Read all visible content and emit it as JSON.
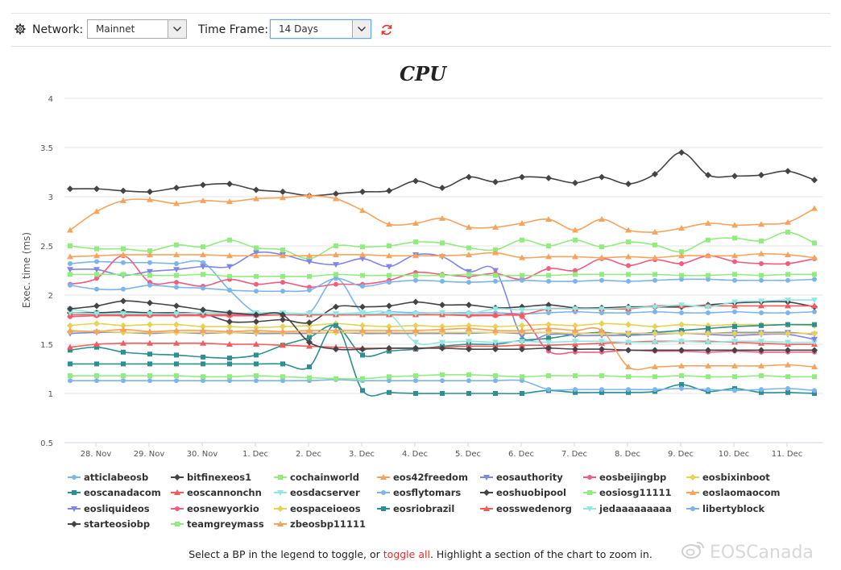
{
  "toolbar": {
    "network_label": "Network:",
    "network_value": "Mainnet",
    "timeframe_label": "Time Frame:",
    "timeframe_value": "14 Days"
  },
  "footer": {
    "text_before": "Select a BP in the legend to toggle, or",
    "toggle_all": "toggle all",
    "text_after": ".  Highlight a section of the chart to zoom in."
  },
  "watermark": "EOSCanada",
  "chart_data": {
    "type": "line",
    "title": "CPU",
    "ylabel": "Exec. time (ms)",
    "xlabel": "",
    "ylim": [
      0.5,
      4
    ],
    "yticks": [
      "0.5",
      "1",
      "1.5",
      "2",
      "2.5",
      "3",
      "3.5",
      "4"
    ],
    "xticks": [
      "28. Nov",
      "29. Nov",
      "30. Nov",
      "1. Dec",
      "2. Dec",
      "3. Dec",
      "4. Dec",
      "5. Dec",
      "6. Dec",
      "7. Dec",
      "8. Dec",
      "9. Dec",
      "10. Dec",
      "11. Dec"
    ],
    "x": [
      "27. Nov 12:00",
      "28. Nov 00:00",
      "28. Nov 12:00",
      "29. Nov 00:00",
      "29. Nov 12:00",
      "30. Nov 00:00",
      "30. Nov 12:00",
      "1. Dec 00:00",
      "1. Dec 12:00",
      "2. Dec 00:00",
      "2. Dec 12:00",
      "3. Dec 00:00",
      "3. Dec 12:00",
      "4. Dec 00:00",
      "4. Dec 12:00",
      "5. Dec 00:00",
      "5. Dec 12:00",
      "6. Dec 00:00",
      "6. Dec 12:00",
      "7. Dec 00:00",
      "7. Dec 12:00",
      "8. Dec 00:00",
      "8. Dec 12:00",
      "9. Dec 00:00",
      "9. Dec 12:00",
      "10. Dec 00:00",
      "10. Dec 12:00",
      "11. Dec 00:00",
      "11. Dec 12:00"
    ],
    "grid": true,
    "legend_position": "bottom",
    "series": [
      {
        "name": "atticlabeosb",
        "color": "#7cb5ec",
        "marker": "circle",
        "values": [
          2.32,
          2.34,
          2.33,
          2.33,
          2.32,
          2.33,
          2.05,
          1.82,
          1.82,
          1.82,
          2.17,
          1.82,
          1.83,
          1.82,
          1.82,
          1.82,
          1.82,
          1.81,
          1.82,
          1.83,
          1.82,
          1.82,
          1.83,
          1.82,
          1.82,
          1.83,
          1.82,
          1.82,
          1.83
        ]
      },
      {
        "name": "bitfinexeos1",
        "color": "#434348",
        "marker": "diamond",
        "values": [
          3.08,
          3.08,
          3.06,
          3.05,
          3.09,
          3.12,
          3.13,
          3.07,
          3.05,
          3.01,
          3.03,
          3.05,
          3.06,
          3.16,
          3.09,
          3.2,
          3.15,
          3.2,
          3.19,
          3.14,
          3.2,
          3.13,
          3.23,
          3.45,
          3.22,
          3.21,
          3.22,
          3.26,
          3.17
        ]
      },
      {
        "name": "cochainworld",
        "color": "#90ed7d",
        "marker": "square",
        "values": [
          2.5,
          2.47,
          2.47,
          2.45,
          2.51,
          2.49,
          2.56,
          2.48,
          2.46,
          2.37,
          2.5,
          2.49,
          2.5,
          2.54,
          2.53,
          2.48,
          2.46,
          2.56,
          2.5,
          2.56,
          2.49,
          2.54,
          2.51,
          2.44,
          2.56,
          2.58,
          2.55,
          2.64,
          2.53
        ]
      },
      {
        "name": "eos42freedom",
        "color": "#f7a35c",
        "marker": "triangle",
        "values": [
          2.66,
          2.85,
          2.96,
          2.97,
          2.93,
          2.96,
          2.95,
          2.98,
          2.99,
          3.01,
          2.98,
          2.86,
          2.72,
          2.73,
          2.78,
          2.69,
          2.69,
          2.73,
          2.77,
          2.66,
          2.77,
          2.66,
          2.64,
          2.68,
          2.73,
          2.71,
          2.72,
          2.74,
          2.88
        ]
      },
      {
        "name": "eosauthority",
        "color": "#8085e9",
        "marker": "triangle-down",
        "values": [
          2.26,
          2.26,
          2.2,
          2.24,
          2.26,
          2.29,
          2.29,
          2.43,
          2.41,
          2.34,
          2.31,
          2.37,
          2.29,
          2.41,
          2.39,
          2.24,
          2.25,
          1.58,
          1.6,
          1.61,
          1.61,
          1.61,
          1.61,
          1.61,
          1.61,
          1.62,
          1.62,
          1.62,
          1.6
        ]
      },
      {
        "name": "eosbeijingbp",
        "color": "#f15c80",
        "marker": "circle",
        "values": [
          2.11,
          2.17,
          2.4,
          2.13,
          2.13,
          2.09,
          2.16,
          2.11,
          2.13,
          2.08,
          2.11,
          2.11,
          2.15,
          2.23,
          2.21,
          2.19,
          2.22,
          2.16,
          2.27,
          2.25,
          2.37,
          2.3,
          2.36,
          2.32,
          2.4,
          2.34,
          2.32,
          2.32,
          2.37
        ]
      },
      {
        "name": "eosbixinboot",
        "color": "#e4d354",
        "marker": "diamond",
        "values": [
          1.69,
          1.71,
          1.69,
          1.7,
          1.7,
          1.68,
          1.68,
          1.67,
          1.68,
          1.69,
          1.71,
          1.69,
          1.68,
          1.69,
          1.68,
          1.69,
          1.68,
          1.69,
          1.7,
          1.69,
          1.71,
          1.7,
          1.68,
          1.7,
          1.69,
          1.7,
          1.7,
          1.7,
          1.69
        ]
      },
      {
        "name": "eoscanadacom",
        "color": "#2b908f",
        "marker": "square",
        "values": [
          1.44,
          1.47,
          1.42,
          1.4,
          1.39,
          1.37,
          1.36,
          1.39,
          1.49,
          1.57,
          1.69,
          1.39,
          1.43,
          1.45,
          1.48,
          1.5,
          1.5,
          1.54,
          1.56,
          1.6,
          1.62,
          1.6,
          1.62,
          1.64,
          1.66,
          1.68,
          1.69,
          1.7,
          1.7
        ]
      },
      {
        "name": "eoscannonchn",
        "color": "#f45b5b",
        "marker": "triangle",
        "values": [
          1.47,
          1.5,
          1.51,
          1.51,
          1.51,
          1.51,
          1.5,
          1.5,
          1.49,
          1.48,
          1.47,
          1.46,
          1.46,
          1.46,
          1.47,
          1.48,
          1.48,
          1.49,
          1.49,
          1.5,
          1.51,
          1.52,
          1.53,
          1.53,
          1.53,
          1.52,
          1.51,
          1.5,
          1.5
        ]
      },
      {
        "name": "eosdacserver",
        "color": "#91e8e1",
        "marker": "triangle-down",
        "values": [
          1.86,
          1.82,
          1.82,
          1.81,
          1.81,
          1.82,
          1.81,
          1.82,
          1.82,
          1.81,
          1.81,
          1.82,
          1.81,
          1.52,
          1.52,
          1.53,
          1.52,
          1.53,
          1.52,
          1.53,
          1.53,
          1.52,
          1.52,
          1.53,
          1.52,
          1.53,
          1.53,
          1.52,
          1.52
        ]
      },
      {
        "name": "eosflytomars",
        "color": "#7cb5ec",
        "marker": "circle",
        "values": [
          2.1,
          2.06,
          2.06,
          2.1,
          2.08,
          2.07,
          2.05,
          2.04,
          2.04,
          2.05,
          2.17,
          2.09,
          2.13,
          2.15,
          2.14,
          2.13,
          2.14,
          2.15,
          2.14,
          2.14,
          2.15,
          2.14,
          2.15,
          2.16,
          2.16,
          2.15,
          2.15,
          2.15,
          2.16
        ]
      },
      {
        "name": "eoshuobipool",
        "color": "#434348",
        "marker": "diamond",
        "values": [
          1.82,
          1.82,
          1.83,
          1.82,
          1.82,
          1.81,
          1.73,
          1.73,
          1.75,
          1.72,
          1.88,
          1.88,
          1.89,
          1.93,
          1.9,
          1.9,
          1.87,
          1.88,
          1.9,
          1.87,
          1.87,
          1.88,
          1.88,
          1.88,
          1.9,
          1.92,
          1.93,
          1.93,
          1.88
        ]
      },
      {
        "name": "eosiosg11111",
        "color": "#90ed7d",
        "marker": "square",
        "values": [
          2.21,
          2.21,
          2.21,
          2.2,
          2.2,
          2.21,
          2.19,
          2.19,
          2.19,
          2.19,
          2.21,
          2.2,
          2.2,
          2.2,
          2.2,
          2.21,
          2.2,
          2.2,
          2.2,
          2.21,
          2.21,
          2.21,
          2.21,
          2.2,
          2.2,
          2.21,
          2.2,
          2.21,
          2.21
        ]
      },
      {
        "name": "eoslaomaocom",
        "color": "#f7a35c",
        "marker": "triangle",
        "values": [
          2.39,
          2.4,
          2.41,
          2.41,
          2.41,
          2.41,
          2.4,
          2.4,
          2.4,
          2.4,
          2.41,
          2.41,
          2.4,
          2.4,
          2.4,
          2.41,
          2.43,
          2.38,
          2.39,
          2.39,
          2.38,
          2.39,
          2.38,
          2.4,
          2.4,
          2.4,
          2.42,
          2.41,
          2.38
        ]
      },
      {
        "name": "eosliquideos",
        "color": "#8085e9",
        "marker": "triangle-down",
        "values": [
          1.61,
          1.62,
          1.62,
          1.61,
          1.62,
          1.61,
          1.62,
          1.61,
          1.61,
          1.61,
          1.62,
          1.61,
          1.61,
          1.61,
          1.61,
          1.61,
          1.62,
          1.61,
          1.62,
          1.59,
          1.59,
          1.59,
          1.6,
          1.61,
          1.6,
          1.59,
          1.6,
          1.6,
          1.55
        ]
      },
      {
        "name": "eosnewyorkio",
        "color": "#f15c80",
        "marker": "circle",
        "values": [
          1.78,
          1.79,
          1.79,
          1.79,
          1.79,
          1.79,
          1.79,
          1.79,
          1.8,
          1.8,
          1.8,
          1.8,
          1.8,
          1.8,
          1.8,
          1.79,
          1.79,
          1.78,
          1.43,
          1.42,
          1.42,
          1.44,
          1.43,
          1.43,
          1.42,
          1.43,
          1.42,
          1.42,
          1.42
        ]
      },
      {
        "name": "eospaceioeos",
        "color": "#e4d354",
        "marker": "diamond",
        "values": [
          1.63,
          1.63,
          1.62,
          1.62,
          1.62,
          1.62,
          1.62,
          1.62,
          1.62,
          1.62,
          1.62,
          1.62,
          1.62,
          1.62,
          1.62,
          1.62,
          1.62,
          1.62,
          1.62,
          1.61,
          1.61,
          1.61,
          1.61,
          1.61,
          1.61,
          1.61,
          1.61,
          1.61,
          1.61
        ]
      },
      {
        "name": "eosriobrazil",
        "color": "#2b908f",
        "marker": "square",
        "values": [
          1.3,
          1.3,
          1.3,
          1.3,
          1.3,
          1.3,
          1.3,
          1.3,
          1.3,
          1.27,
          1.69,
          1.03,
          1.01,
          1.0,
          1.0,
          1.0,
          1.0,
          1.0,
          1.03,
          1.01,
          1.01,
          1.01,
          1.02,
          1.09,
          1.02,
          1.05,
          1.01,
          1.01,
          1.0
        ]
      },
      {
        "name": "eosswedenorg",
        "color": "#f45b5b",
        "marker": "triangle",
        "values": [
          1.8,
          1.8,
          1.8,
          1.8,
          1.8,
          1.8,
          1.8,
          1.8,
          1.8,
          1.8,
          1.8,
          1.8,
          1.8,
          1.8,
          1.8,
          1.8,
          1.8,
          1.8,
          1.86,
          1.86,
          1.86,
          1.86,
          1.89,
          1.89,
          1.89,
          1.89,
          1.89,
          1.89,
          1.89
        ]
      },
      {
        "name": "jedaaaaaaaaa",
        "color": "#91e8e1",
        "marker": "triangle-down",
        "values": [
          1.82,
          1.81,
          1.81,
          1.81,
          1.81,
          1.82,
          1.82,
          1.81,
          1.81,
          1.81,
          1.81,
          1.81,
          1.81,
          1.81,
          1.82,
          1.81,
          1.86,
          1.85,
          1.86,
          1.86,
          1.86,
          1.87,
          1.88,
          1.9,
          1.88,
          1.93,
          1.94,
          1.95,
          1.95
        ]
      },
      {
        "name": "libertyblock",
        "color": "#7cb5ec",
        "marker": "circle",
        "values": [
          1.13,
          1.13,
          1.13,
          1.13,
          1.13,
          1.13,
          1.13,
          1.13,
          1.13,
          1.13,
          1.14,
          1.13,
          1.13,
          1.13,
          1.13,
          1.13,
          1.13,
          1.13,
          1.04,
          1.04,
          1.04,
          1.04,
          1.04,
          1.05,
          1.04,
          1.03,
          1.04,
          1.05,
          1.03
        ]
      },
      {
        "name": "starteosiobp",
        "color": "#434348",
        "marker": "diamond",
        "values": [
          1.86,
          1.89,
          1.94,
          1.92,
          1.89,
          1.85,
          1.82,
          1.8,
          1.8,
          1.52,
          1.45,
          1.45,
          1.46,
          1.46,
          1.46,
          1.45,
          1.45,
          1.45,
          1.46,
          1.45,
          1.45,
          1.44,
          1.44,
          1.44,
          1.44,
          1.44,
          1.44,
          1.44,
          1.44
        ]
      },
      {
        "name": "teamgreymass",
        "color": "#90ed7d",
        "marker": "square",
        "values": [
          1.18,
          1.18,
          1.18,
          1.18,
          1.18,
          1.17,
          1.17,
          1.18,
          1.17,
          1.16,
          1.15,
          1.15,
          1.17,
          1.18,
          1.19,
          1.19,
          1.18,
          1.17,
          1.18,
          1.18,
          1.18,
          1.17,
          1.17,
          1.18,
          1.17,
          1.17,
          1.18,
          1.17,
          1.17
        ]
      },
      {
        "name": "zbeosbp11111",
        "color": "#f7a35c",
        "marker": "triangle",
        "values": [
          1.64,
          1.63,
          1.65,
          1.63,
          1.64,
          1.64,
          1.63,
          1.64,
          1.63,
          1.64,
          1.64,
          1.64,
          1.64,
          1.64,
          1.65,
          1.66,
          1.64,
          1.64,
          1.66,
          1.64,
          1.64,
          1.27,
          1.27,
          1.28,
          1.28,
          1.28,
          1.28,
          1.29,
          1.27
        ]
      }
    ]
  }
}
